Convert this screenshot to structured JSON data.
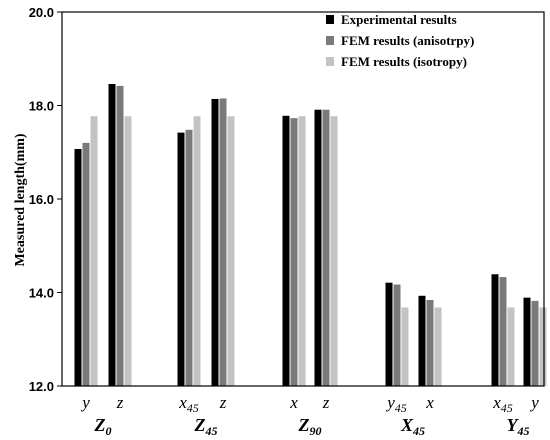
{
  "chart_data": {
    "type": "bar",
    "title": "",
    "xlabel": "",
    "ylabel": "Measured length(mm)",
    "ylim": [
      12.0,
      20.0
    ],
    "yticks": [
      "12.0",
      "14.0",
      "16.0",
      "18.0",
      "20.0"
    ],
    "grid": false,
    "legend_position": "top-right",
    "groups": [
      {
        "label": "Z",
        "sub": "0",
        "categories": [
          {
            "label": "y",
            "sub": ""
          },
          {
            "label": "z",
            "sub": ""
          }
        ]
      },
      {
        "label": "Z",
        "sub": "45",
        "categories": [
          {
            "label": "x",
            "sub": "45"
          },
          {
            "label": "z",
            "sub": ""
          }
        ]
      },
      {
        "label": "Z",
        "sub": "90",
        "categories": [
          {
            "label": "x",
            "sub": ""
          },
          {
            "label": "z",
            "sub": ""
          }
        ]
      },
      {
        "label": "X",
        "sub": "45",
        "categories": [
          {
            "label": "y",
            "sub": "45"
          },
          {
            "label": "x",
            "sub": ""
          }
        ]
      },
      {
        "label": "Y",
        "sub": "45",
        "categories": [
          {
            "label": "x",
            "sub": "45"
          },
          {
            "label": "y",
            "sub": ""
          }
        ]
      }
    ],
    "series": [
      {
        "name": "Experimental results",
        "color": "#000000",
        "values": [
          17.07,
          18.46,
          17.42,
          18.14,
          17.78,
          17.91,
          14.21,
          13.93,
          14.39,
          13.89
        ]
      },
      {
        "name": "FEM results (anisotrpy)",
        "color": "#7a7a7a",
        "values": [
          17.2,
          18.42,
          17.48,
          18.15,
          17.73,
          17.91,
          14.17,
          13.84,
          14.33,
          13.82
        ]
      },
      {
        "name": "FEM results (isotropy)",
        "color": "#c3c3c3",
        "values": [
          17.77,
          17.77,
          17.77,
          17.77,
          17.77,
          17.77,
          13.68,
          13.68,
          13.68,
          13.68
        ]
      }
    ]
  }
}
